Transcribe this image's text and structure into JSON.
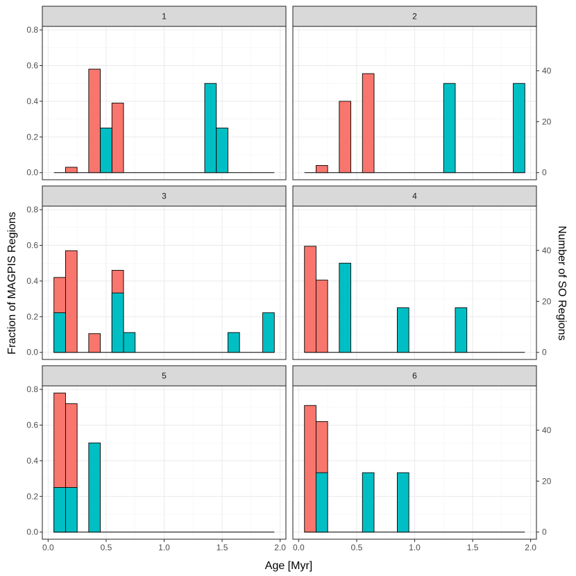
{
  "chart_data": {
    "type": "bar",
    "xlabel": "Age [Myr]",
    "ylabel": "Fraction of MAGPIS Regions",
    "ylabel_right": "Number of SO Regions",
    "xlim": [
      -0.05,
      2.05
    ],
    "ylim": [
      -0.04,
      0.82
    ],
    "x_ticks": [
      "0.0",
      "0.5",
      "1.0",
      "1.5",
      "2.0"
    ],
    "y_ticks": [
      "0.0",
      "0.2",
      "0.4",
      "0.6",
      "0.8"
    ],
    "y2_ticks": [
      "0",
      "20",
      "40"
    ],
    "y2_scale": 70,
    "bin_width": 0.1,
    "baseline_range": [
      0.05,
      1.95
    ],
    "colors": {
      "magpis": "#F8766D",
      "so": "#00BFC4"
    },
    "series_names": [
      "MAGPIS",
      "SO"
    ],
    "panels": [
      {
        "label": "1",
        "magpis": [
          {
            "x": 0.2,
            "y": 0.03
          },
          {
            "x": 0.4,
            "y": 0.58
          },
          {
            "x": 0.6,
            "y": 0.39
          }
        ],
        "so": [
          {
            "x": 0.5,
            "y": 0.25
          },
          {
            "x": 1.4,
            "y": 0.5
          },
          {
            "x": 1.5,
            "y": 0.25
          }
        ]
      },
      {
        "label": "2",
        "magpis": [
          {
            "x": 0.2,
            "y": 0.04
          },
          {
            "x": 0.4,
            "y": 0.4
          },
          {
            "x": 0.6,
            "y": 0.555
          }
        ],
        "so": [
          {
            "x": 1.3,
            "y": 0.5
          },
          {
            "x": 1.9,
            "y": 0.5
          }
        ]
      },
      {
        "label": "3",
        "magpis": [
          {
            "x": 0.1,
            "y": 0.42
          },
          {
            "x": 0.2,
            "y": 0.57
          },
          {
            "x": 0.4,
            "y": 0.105
          },
          {
            "x": 0.6,
            "y": 0.46
          }
        ],
        "so": [
          {
            "x": 0.1,
            "y": 0.222
          },
          {
            "x": 0.6,
            "y": 0.333
          },
          {
            "x": 0.7,
            "y": 0.111
          },
          {
            "x": 1.6,
            "y": 0.111
          },
          {
            "x": 1.9,
            "y": 0.222
          }
        ]
      },
      {
        "label": "4",
        "magpis": [
          {
            "x": 0.1,
            "y": 0.595
          },
          {
            "x": 0.2,
            "y": 0.405
          }
        ],
        "so": [
          {
            "x": 0.4,
            "y": 0.5
          },
          {
            "x": 0.9,
            "y": 0.25
          },
          {
            "x": 1.4,
            "y": 0.25
          }
        ]
      },
      {
        "label": "5",
        "magpis": [
          {
            "x": 0.1,
            "y": 0.78
          },
          {
            "x": 0.2,
            "y": 0.72
          }
        ],
        "so": [
          {
            "x": 0.1,
            "y": 0.25
          },
          {
            "x": 0.2,
            "y": 0.25
          },
          {
            "x": 0.4,
            "y": 0.5
          }
        ]
      },
      {
        "label": "6",
        "magpis": [
          {
            "x": 0.1,
            "y": 0.71
          },
          {
            "x": 0.2,
            "y": 0.62
          }
        ],
        "so": [
          {
            "x": 0.2,
            "y": 0.333
          },
          {
            "x": 0.6,
            "y": 0.333
          },
          {
            "x": 0.9,
            "y": 0.333
          }
        ]
      }
    ]
  }
}
